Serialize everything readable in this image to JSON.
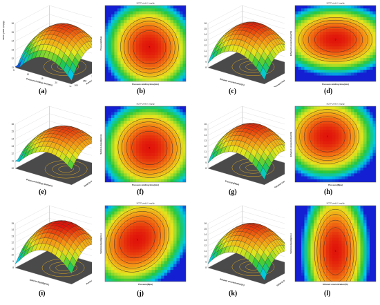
{
  "figure": {
    "panel_labels": [
      "(a)",
      "(b)",
      "(c)",
      "(d)",
      "(e)",
      "(f)",
      "(g)",
      "(h)",
      "(i)",
      "(j)",
      "(k)",
      "(l)"
    ]
  },
  "chart_data": [
    {
      "id": "a",
      "type": "surface3d",
      "zlabel": "SCTF yield / (mg/g)",
      "xlabel": "Pressure-holding time(min)",
      "ylabel": "Pressure(Mpa)",
      "zticks": [
        "11",
        "12",
        "13",
        "14",
        "15",
        "16"
      ],
      "xticks": [
        "5",
        "10",
        "15",
        "20",
        "25"
      ],
      "yticks": [
        "200",
        "250",
        "300",
        "350",
        "400"
      ],
      "zlim": [
        11,
        16
      ],
      "peak": 15.7,
      "min": 11.1
    },
    {
      "id": "b",
      "type": "contour",
      "title": "SCTF yield / (mg/g)",
      "xlabel": "Pressure-holding time(min)",
      "ylabel": "Pressure(Mpa)",
      "contour_levels": [
        12,
        13,
        14,
        15
      ],
      "design_point_labels": [
        "5"
      ]
    },
    {
      "id": "c",
      "type": "surface3d",
      "xlabel": "Ethanol concentration(%)",
      "ylabel": "Pressure-holding time(min)",
      "zticks": [
        "8",
        "9",
        "10",
        "11",
        "12",
        "13",
        "14",
        "15",
        "16"
      ],
      "zlim": [
        8,
        16
      ],
      "peak": 15.8,
      "min": 8.3
    },
    {
      "id": "d",
      "type": "contour",
      "title": "SCTF yield / (mg/g)",
      "xlabel": "Pressure-holding time(min)",
      "ylabel": "Ethanol concentration(%)",
      "contour_levels": [
        12,
        13,
        14,
        15
      ],
      "design_point_labels": [
        "5"
      ]
    },
    {
      "id": "e",
      "type": "surface3d",
      "xlabel": "Pressure-holding time(min)",
      "ylabel": "Solid-to-liquid(g/mL)",
      "zticks": [
        "10",
        "11",
        "12",
        "13",
        "14",
        "15",
        "16"
      ],
      "zlim": [
        10,
        16
      ],
      "peak": 15.6,
      "min": 11.0
    },
    {
      "id": "f",
      "type": "contour",
      "title": "SCTF yield / (mg/g)",
      "xlabel": "Pressure-holding time(min)",
      "ylabel": "Solid-to-liquid(g/mL)",
      "contour_levels": [
        12,
        13,
        14,
        15
      ],
      "design_point_labels": [
        "5"
      ]
    },
    {
      "id": "g",
      "type": "surface3d",
      "xlabel": "Pressure(Mpa)",
      "ylabel": "Ethanol concentration(%)",
      "zticks": [
        "8",
        "9",
        "10",
        "11",
        "12",
        "13",
        "14",
        "15",
        "16"
      ],
      "zlim": [
        8,
        16
      ],
      "peak": 15.7,
      "min": 8.5
    },
    {
      "id": "h",
      "type": "contour",
      "title": "SCTF yield / (mg/g)",
      "xlabel": "Pressure(Mpa)",
      "ylabel": "Ethanol concentration(%)",
      "contour_levels": [
        12,
        13,
        14,
        15
      ],
      "design_point_labels": [
        "5"
      ]
    },
    {
      "id": "i",
      "type": "surface3d",
      "xlabel": "Solid-to-liquid(g/mL)",
      "ylabel": "Pressure(Mpa)",
      "zticks": [
        "8",
        "9",
        "10",
        "11",
        "12",
        "13",
        "14",
        "15"
      ],
      "zlim": [
        8,
        15
      ],
      "peak": 15.2,
      "min": 8.6
    },
    {
      "id": "j",
      "type": "contour",
      "title": "SCTF yield / (mg/g)",
      "xlabel": "Pressure(Mpa)",
      "ylabel": "Solid-to-liquid(g/mL)",
      "contour_levels": [
        11,
        12,
        13,
        14,
        15
      ],
      "design_point_labels": [
        "5"
      ]
    },
    {
      "id": "k",
      "type": "surface3d",
      "xlabel": "Ethanol concentration(%)",
      "ylabel": "Solid-to-liquid(g/mL)",
      "zticks": [
        "8",
        "9",
        "10",
        "11",
        "12",
        "13",
        "14",
        "15",
        "16"
      ],
      "zlim": [
        8,
        16
      ],
      "peak": 15.6,
      "min": 8.2
    },
    {
      "id": "l",
      "type": "contour",
      "title": "SCTF yield / (mg/g)",
      "xlabel": "Ethanol concentration(%)",
      "ylabel": "Solid-to-liquid(g/mL)",
      "contour_levels": [
        12,
        13,
        14,
        15
      ],
      "design_point_labels": [
        "5"
      ]
    }
  ]
}
